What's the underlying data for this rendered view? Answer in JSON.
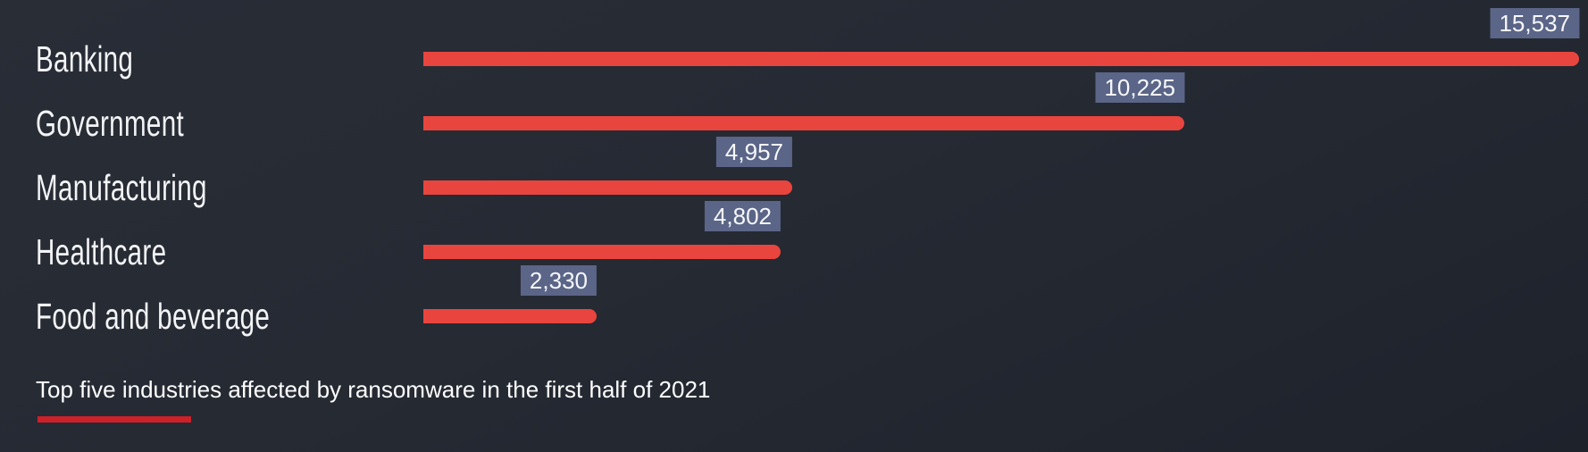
{
  "chart_data": {
    "type": "bar",
    "orientation": "horizontal",
    "categories": [
      "Banking",
      "Government",
      "Manufacturing",
      "Healthcare",
      "Food and beverage"
    ],
    "values": [
      15537,
      10225,
      4957,
      4802,
      2330
    ],
    "display_values": [
      "15,537",
      "10,225",
      "4,957",
      "4,802",
      "2,330"
    ],
    "title": "Top five industries affected by ransomware in the first half of 2021",
    "xlabel": "",
    "ylabel": "",
    "xlim": [
      0,
      15537
    ],
    "grid": false,
    "legend": "none",
    "value_labels": "badge above right end of each bar",
    "colors": {
      "bar": "#e8453e",
      "value_badge_background": "#5a6587",
      "value_badge_text": "#f6f7f9",
      "category_label_text": "#f3f4f6",
      "background": "#262a33",
      "title_text": "#ffffff",
      "title_accent_underline": "#ce2029"
    }
  }
}
